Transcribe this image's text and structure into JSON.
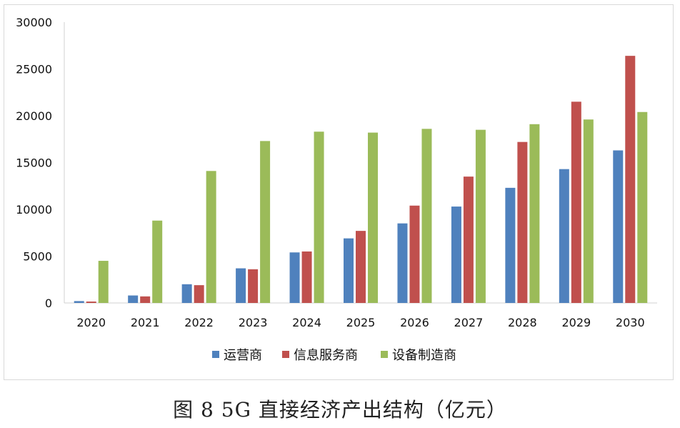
{
  "caption": "图 8 5G 直接经济产出结构（亿元）",
  "chart_data": {
    "type": "bar",
    "title": "",
    "xlabel": "",
    "ylabel": "",
    "ylim": [
      0,
      30000
    ],
    "yticks": [
      0,
      5000,
      10000,
      15000,
      20000,
      25000,
      30000
    ],
    "grid": false,
    "legend_position": "bottom",
    "categories": [
      "2020",
      "2021",
      "2022",
      "2023",
      "2024",
      "2025",
      "2026",
      "2027",
      "2028",
      "2029",
      "2030"
    ],
    "series": [
      {
        "name": "运营商",
        "color": "#4f81bd",
        "values": [
          200,
          800,
          2000,
          3700,
          5400,
          6900,
          8500,
          10300,
          12300,
          14300,
          16300
        ]
      },
      {
        "name": "信息服务商",
        "color": "#c0504d",
        "values": [
          150,
          700,
          1900,
          3600,
          5500,
          7700,
          10400,
          13500,
          17200,
          21500,
          26400
        ]
      },
      {
        "name": "设备制造商",
        "color": "#9bbb59",
        "values": [
          4500,
          8800,
          14100,
          17300,
          18300,
          18200,
          18600,
          18500,
          19100,
          19600,
          20400
        ]
      }
    ]
  }
}
